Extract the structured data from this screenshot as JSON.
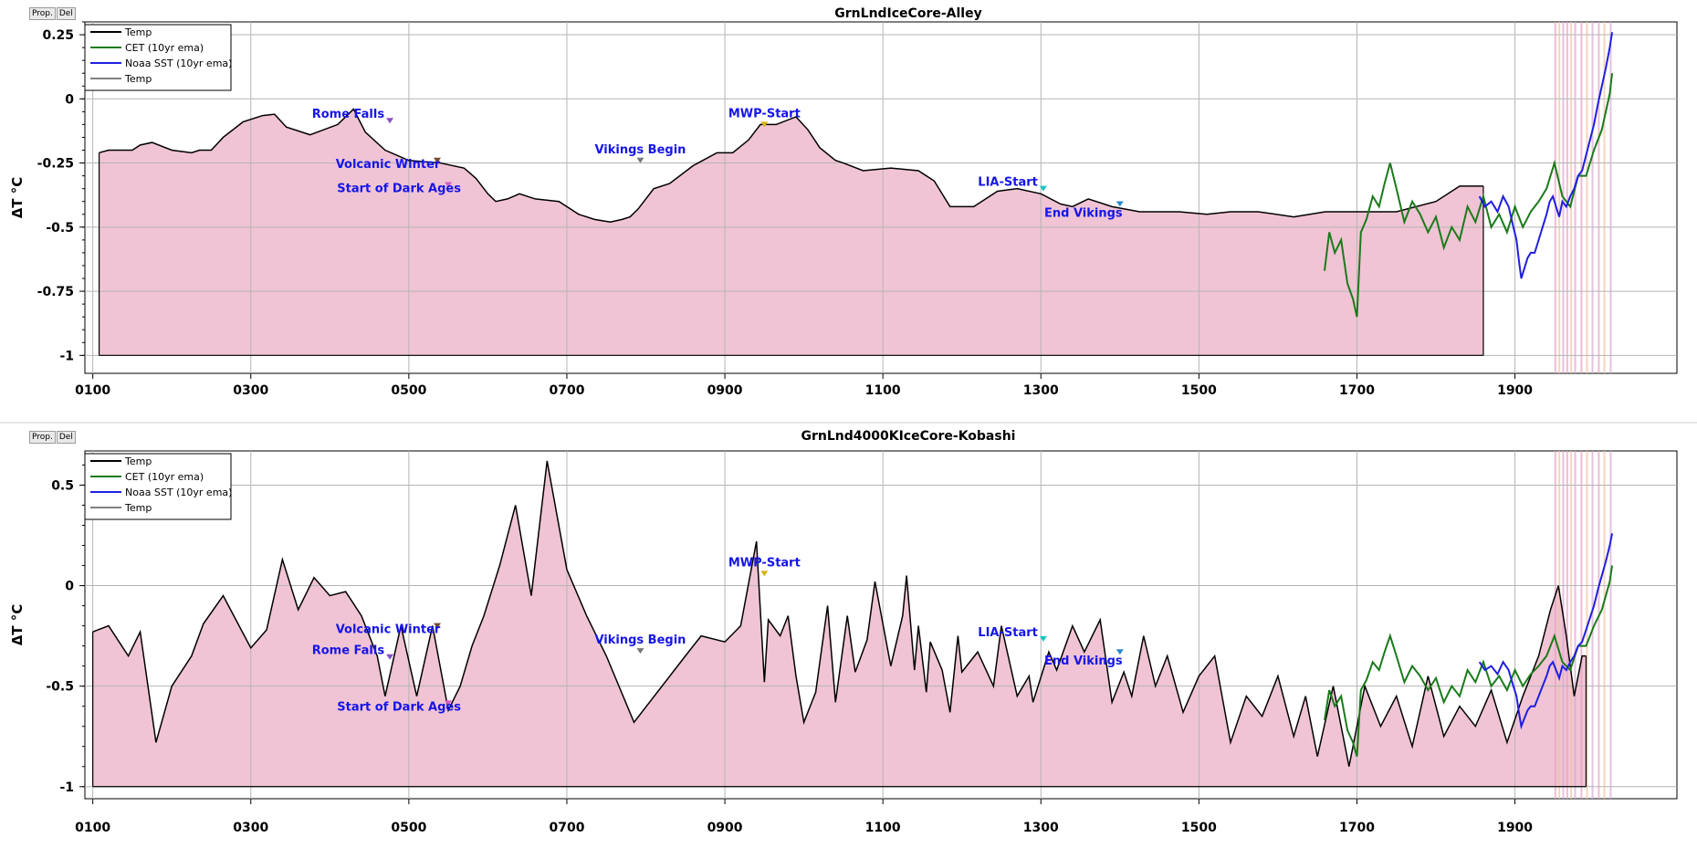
{
  "panel_buttons": {
    "prop": "Prop.",
    "del": "Del"
  },
  "colors": {
    "fill": "#f0c4d4",
    "temp": "#000000",
    "cet": "#1a7a1a",
    "sst": "#1f1fe0",
    "event_text": "#1515e8"
  },
  "chart_data": [
    {
      "type": "area",
      "title": "GrnLndIceCore-Alley",
      "xlabel": "",
      "ylabel": "ΔT °C",
      "xlim": [
        90,
        2105
      ],
      "ylim": [
        -1.0,
        0.25
      ],
      "yticks": [
        0.25,
        0,
        -0.25,
        -0.5,
        -0.75,
        -1
      ],
      "ytick_labels": [
        "0.25",
        "0",
        "-0.25",
        "-0.5",
        "-0.75",
        "-1"
      ],
      "xticks": [
        100,
        300,
        500,
        700,
        900,
        1100,
        1300,
        1500,
        1700,
        1900
      ],
      "xtick_labels": [
        "0100",
        "0300",
        "0500",
        "0700",
        "0900",
        "1100",
        "1300",
        "1500",
        "1700",
        "1900"
      ],
      "grid": true,
      "legend_position": "top-left",
      "legend": [
        "Temp",
        "CET (10yr ema)",
        "Noaa SST (10yr ema)",
        "Temp"
      ],
      "series": [
        {
          "name": "Temp",
          "kind": "area",
          "x": [
            108,
            120,
            150,
            160,
            175,
            200,
            225,
            235,
            250,
            265,
            290,
            315,
            330,
            345,
            375,
            410,
            430,
            445,
            470,
            500,
            540,
            570,
            585,
            600,
            610,
            625,
            640,
            660,
            690,
            715,
            735,
            755,
            770,
            780,
            790,
            810,
            830,
            860,
            890,
            910,
            930,
            945,
            965,
            990,
            1005,
            1020,
            1040,
            1050,
            1075,
            1110,
            1145,
            1165,
            1185,
            1215,
            1245,
            1270,
            1300,
            1325,
            1340,
            1360,
            1390,
            1425,
            1475,
            1510,
            1540,
            1575,
            1620,
            1660,
            1700,
            1750,
            1800,
            1830,
            1860
          ],
          "y": [
            -0.21,
            -0.2,
            -0.2,
            -0.18,
            -0.17,
            -0.2,
            -0.21,
            -0.2,
            -0.2,
            -0.15,
            -0.09,
            -0.065,
            -0.06,
            -0.11,
            -0.14,
            -0.1,
            -0.04,
            -0.13,
            -0.2,
            -0.24,
            -0.25,
            -0.27,
            -0.31,
            -0.37,
            -0.4,
            -0.39,
            -0.37,
            -0.39,
            -0.4,
            -0.45,
            -0.47,
            -0.48,
            -0.47,
            -0.46,
            -0.43,
            -0.35,
            -0.33,
            -0.26,
            -0.21,
            -0.21,
            -0.16,
            -0.1,
            -0.1,
            -0.07,
            -0.12,
            -0.19,
            -0.24,
            -0.25,
            -0.28,
            -0.27,
            -0.28,
            -0.32,
            -0.42,
            -0.42,
            -0.36,
            -0.35,
            -0.37,
            -0.41,
            -0.42,
            -0.39,
            -0.42,
            -0.44,
            -0.44,
            -0.45,
            -0.44,
            -0.44,
            -0.46,
            -0.44,
            -0.44,
            -0.44,
            -0.4,
            -0.34,
            -0.34
          ],
          "base": -1.0,
          "x_end": 1860
        },
        {
          "name": "CET (10yr ema)",
          "kind": "line",
          "x": [
            1659,
            1665,
            1672,
            1680,
            1688,
            1695,
            1700,
            1705,
            1712,
            1720,
            1728,
            1735,
            1742,
            1750,
            1760,
            1770,
            1780,
            1790,
            1800,
            1810,
            1820,
            1830,
            1840,
            1850,
            1860,
            1870,
            1880,
            1890,
            1900,
            1910,
            1920,
            1930,
            1940,
            1950,
            1960,
            1970,
            1980,
            1990,
            2000,
            2010,
            2015,
            2020,
            2023
          ],
          "y": [
            -0.67,
            -0.52,
            -0.6,
            -0.55,
            -0.72,
            -0.78,
            -0.85,
            -0.52,
            -0.47,
            -0.38,
            -0.42,
            -0.33,
            -0.25,
            -0.35,
            -0.48,
            -0.4,
            -0.45,
            -0.52,
            -0.46,
            -0.58,
            -0.5,
            -0.55,
            -0.42,
            -0.48,
            -0.38,
            -0.5,
            -0.45,
            -0.52,
            -0.42,
            -0.5,
            -0.44,
            -0.4,
            -0.35,
            -0.25,
            -0.38,
            -0.42,
            -0.3,
            -0.3,
            -0.2,
            -0.12,
            -0.05,
            0.02,
            0.1
          ]
        },
        {
          "name": "Noaa SST (10yr ema)",
          "kind": "line",
          "x": [
            1855,
            1862,
            1870,
            1878,
            1885,
            1892,
            1898,
            1902,
            1905,
            1908,
            1912,
            1916,
            1920,
            1925,
            1930,
            1935,
            1940,
            1944,
            1948,
            1952,
            1956,
            1960,
            1965,
            1970,
            1975,
            1980,
            1985,
            1990,
            1995,
            2000,
            2005,
            2010,
            2015,
            2020,
            2023
          ],
          "y": [
            -0.38,
            -0.42,
            -0.4,
            -0.44,
            -0.38,
            -0.42,
            -0.5,
            -0.55,
            -0.63,
            -0.7,
            -0.66,
            -0.62,
            -0.6,
            -0.6,
            -0.55,
            -0.5,
            -0.45,
            -0.4,
            -0.38,
            -0.42,
            -0.46,
            -0.4,
            -0.42,
            -0.38,
            -0.35,
            -0.3,
            -0.28,
            -0.22,
            -0.16,
            -0.1,
            -0.02,
            0.05,
            0.12,
            0.2,
            0.26
          ]
        }
      ],
      "events": [
        {
          "label": "Rome Falls",
          "x": 476,
          "y": -0.085,
          "color": "#8a4fc4"
        },
        {
          "label": "Volcanic Winter",
          "x": 536,
          "y": -0.24,
          "color": "#7a4a32"
        },
        {
          "label": "Start of Dark Ages",
          "x": 550,
          "y": -0.335,
          "color": "#d25cc6"
        },
        {
          "label": "Vikings Begin",
          "x": 793,
          "y": -0.24,
          "color": "#777777"
        },
        {
          "label": "MWP-Start",
          "x": 950,
          "y": -0.1,
          "color": "#d4b214"
        },
        {
          "label": "LIA-Start",
          "x": 1303,
          "y": -0.35,
          "color": "#1cc4c4"
        },
        {
          "label": "End Vikings",
          "x": 1400,
          "y": -0.41,
          "color": "#2a8ac6"
        }
      ],
      "recent_bands": [
        1950,
        1955,
        1960,
        1965,
        1970,
        1975,
        1983,
        1990,
        1997,
        2005,
        2012,
        2020
      ]
    },
    {
      "type": "area",
      "title": "GrnLnd4000KIceCore-Kobashi",
      "xlabel": "",
      "ylabel": "ΔT °C",
      "xlim": [
        90,
        2105
      ],
      "ylim": [
        -1.0,
        0.62
      ],
      "yticks": [
        0.5,
        0,
        -0.5,
        -1
      ],
      "ytick_labels": [
        "0.5",
        "0",
        "-0.5",
        "-1"
      ],
      "xticks": [
        100,
        300,
        500,
        700,
        900,
        1100,
        1300,
        1500,
        1700,
        1900
      ],
      "xtick_labels": [
        "0100",
        "0300",
        "0500",
        "0700",
        "0900",
        "1100",
        "1300",
        "1500",
        "1700",
        "1900"
      ],
      "grid": true,
      "legend_position": "top-left",
      "legend": [
        "Temp",
        "CET (10yr ema)",
        "Noaa SST (10yr ema)",
        "Temp"
      ],
      "series": [
        {
          "name": "Temp",
          "kind": "area",
          "x": [
            100,
            120,
            145,
            160,
            180,
            200,
            225,
            240,
            265,
            300,
            320,
            340,
            360,
            380,
            400,
            420,
            440,
            460,
            470,
            490,
            510,
            530,
            550,
            565,
            580,
            595,
            615,
            635,
            655,
            675,
            700,
            725,
            750,
            785,
            850,
            870,
            900,
            920,
            940,
            950,
            955,
            970,
            980,
            990,
            1000,
            1015,
            1030,
            1040,
            1055,
            1065,
            1080,
            1090,
            1110,
            1125,
            1130,
            1140,
            1145,
            1155,
            1160,
            1175,
            1185,
            1195,
            1200,
            1220,
            1240,
            1250,
            1270,
            1285,
            1290,
            1310,
            1320,
            1340,
            1355,
            1375,
            1390,
            1405,
            1415,
            1430,
            1445,
            1460,
            1480,
            1500,
            1520,
            1540,
            1560,
            1580,
            1600,
            1620,
            1635,
            1650,
            1670,
            1690,
            1710,
            1730,
            1750,
            1770,
            1790,
            1810,
            1830,
            1850,
            1870,
            1890,
            1910,
            1930,
            1945,
            1955,
            1965,
            1975,
            1985,
            1990
          ],
          "y": [
            -0.23,
            -0.2,
            -0.35,
            -0.23,
            -0.78,
            -0.5,
            -0.35,
            -0.19,
            -0.05,
            -0.31,
            -0.22,
            0.13,
            -0.12,
            0.04,
            -0.05,
            -0.03,
            -0.15,
            -0.35,
            -0.55,
            -0.2,
            -0.55,
            -0.2,
            -0.62,
            -0.5,
            -0.3,
            -0.15,
            0.1,
            0.4,
            -0.05,
            0.62,
            0.08,
            -0.15,
            -0.35,
            -0.68,
            -0.35,
            -0.25,
            -0.28,
            -0.2,
            0.22,
            -0.48,
            -0.17,
            -0.25,
            -0.15,
            -0.45,
            -0.68,
            -0.53,
            -0.1,
            -0.58,
            -0.15,
            -0.43,
            -0.27,
            0.02,
            -0.4,
            -0.15,
            0.05,
            -0.42,
            -0.2,
            -0.53,
            -0.28,
            -0.42,
            -0.63,
            -0.25,
            -0.43,
            -0.33,
            -0.5,
            -0.2,
            -0.55,
            -0.45,
            -0.58,
            -0.33,
            -0.42,
            -0.2,
            -0.33,
            -0.17,
            -0.58,
            -0.43,
            -0.55,
            -0.25,
            -0.5,
            -0.35,
            -0.63,
            -0.45,
            -0.35,
            -0.78,
            -0.55,
            -0.65,
            -0.45,
            -0.75,
            -0.55,
            -0.85,
            -0.5,
            -0.9,
            -0.5,
            -0.7,
            -0.55,
            -0.8,
            -0.45,
            -0.75,
            -0.6,
            -0.7,
            -0.52,
            -0.78,
            -0.55,
            -0.35,
            -0.12,
            0.0,
            -0.25,
            -0.55,
            -0.35,
            -0.35
          ],
          "base": -1.0,
          "x_end": 1990
        },
        {
          "name": "CET (10yr ema)",
          "kind": "line",
          "x": [
            1659,
            1665,
            1672,
            1680,
            1688,
            1695,
            1700,
            1705,
            1712,
            1720,
            1728,
            1735,
            1742,
            1750,
            1760,
            1770,
            1780,
            1790,
            1800,
            1810,
            1820,
            1830,
            1840,
            1850,
            1860,
            1870,
            1880,
            1890,
            1900,
            1910,
            1920,
            1930,
            1940,
            1950,
            1960,
            1970,
            1980,
            1990,
            2000,
            2010,
            2015,
            2020,
            2023
          ],
          "y": [
            -0.67,
            -0.52,
            -0.6,
            -0.55,
            -0.72,
            -0.78,
            -0.85,
            -0.52,
            -0.47,
            -0.38,
            -0.42,
            -0.33,
            -0.25,
            -0.35,
            -0.48,
            -0.4,
            -0.45,
            -0.52,
            -0.46,
            -0.58,
            -0.5,
            -0.55,
            -0.42,
            -0.48,
            -0.38,
            -0.5,
            -0.45,
            -0.52,
            -0.42,
            -0.5,
            -0.44,
            -0.4,
            -0.35,
            -0.25,
            -0.38,
            -0.42,
            -0.3,
            -0.3,
            -0.2,
            -0.12,
            -0.05,
            0.02,
            0.1
          ]
        },
        {
          "name": "Noaa SST (10yr ema)",
          "kind": "line",
          "x": [
            1855,
            1862,
            1870,
            1878,
            1885,
            1892,
            1898,
            1902,
            1905,
            1908,
            1912,
            1916,
            1920,
            1925,
            1930,
            1935,
            1940,
            1944,
            1948,
            1952,
            1956,
            1960,
            1965,
            1970,
            1975,
            1980,
            1985,
            1990,
            1995,
            2000,
            2005,
            2010,
            2015,
            2020,
            2023
          ],
          "y": [
            -0.38,
            -0.42,
            -0.4,
            -0.44,
            -0.38,
            -0.42,
            -0.5,
            -0.55,
            -0.63,
            -0.7,
            -0.66,
            -0.62,
            -0.6,
            -0.6,
            -0.55,
            -0.5,
            -0.45,
            -0.4,
            -0.38,
            -0.42,
            -0.46,
            -0.4,
            -0.42,
            -0.38,
            -0.35,
            -0.3,
            -0.28,
            -0.22,
            -0.16,
            -0.1,
            -0.02,
            0.05,
            0.12,
            0.2,
            0.26
          ]
        }
      ],
      "events": [
        {
          "label": "Volcanic Winter",
          "x": 536,
          "y": -0.2,
          "color": "#7a4a32"
        },
        {
          "label": "Rome Falls",
          "x": 476,
          "y": -0.355,
          "color": "#8a4fc4"
        },
        {
          "label": "Start of Dark Ages",
          "x": 550,
          "y": -0.585,
          "color": "#d25cc6"
        },
        {
          "label": "Vikings Begin",
          "x": 793,
          "y": -0.325,
          "color": "#777777"
        },
        {
          "label": "MWP-Start",
          "x": 950,
          "y": 0.06,
          "color": "#d4b214"
        },
        {
          "label": "LIA-Start",
          "x": 1303,
          "y": -0.265,
          "color": "#1cc4c4"
        },
        {
          "label": "End Vikings",
          "x": 1400,
          "y": -0.33,
          "color": "#2a8ac6"
        }
      ],
      "recent_bands": [
        1950,
        1955,
        1960,
        1965,
        1970,
        1975,
        1983,
        1990,
        1997,
        2005,
        2012,
        2020
      ]
    }
  ]
}
